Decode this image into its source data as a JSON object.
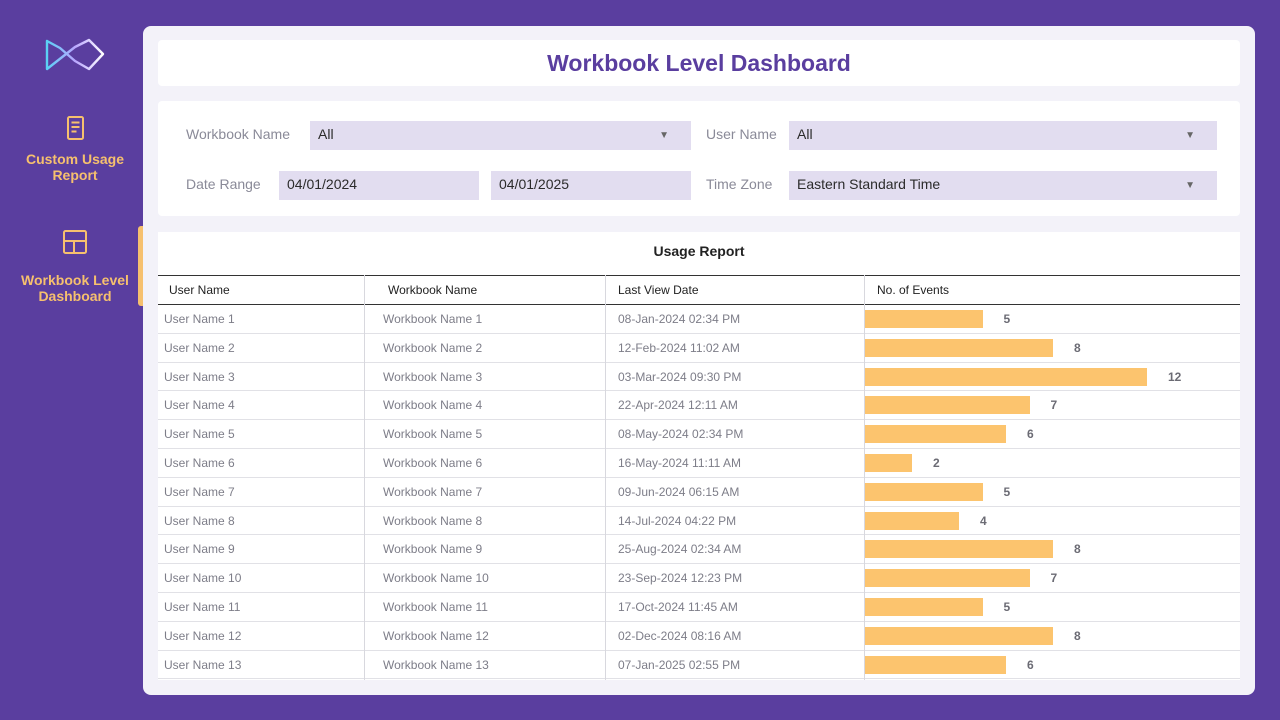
{
  "sidebar": {
    "items": [
      {
        "label": "Custom Usage Report",
        "icon": "document-icon"
      },
      {
        "label": "Workbook Level Dashboard",
        "icon": "layout-icon",
        "active": true
      }
    ]
  },
  "header": {
    "title": "Workbook Level Dashboard"
  },
  "filters": {
    "workbook_name": {
      "label": "Workbook Name",
      "value": "All"
    },
    "user_name": {
      "label": "User Name",
      "value": "All"
    },
    "date_range": {
      "label": "Date Range",
      "start": "04/01/2024",
      "end": "04/01/2025"
    },
    "time_zone": {
      "label": "Time Zone",
      "value": "Eastern Standard Time"
    }
  },
  "usage_report": {
    "title": "Usage Report",
    "columns": [
      "User Name",
      "Workbook Name",
      "Last View Date",
      "No. of Events"
    ],
    "rows": [
      {
        "user": "User Name 1",
        "workbook": "Workbook Name 1",
        "date": "08-Jan-2024 02:34 PM",
        "events": 5
      },
      {
        "user": "User Name 2",
        "workbook": "Workbook Name 2",
        "date": "12-Feb-2024 11:02 AM",
        "events": 8
      },
      {
        "user": "User Name 3",
        "workbook": "Workbook Name 3",
        "date": "03-Mar-2024 09:30 PM",
        "events": 12
      },
      {
        "user": "User Name 4",
        "workbook": "Workbook Name 4",
        "date": "22-Apr-2024 12:11 AM",
        "events": 7
      },
      {
        "user": "User Name 5",
        "workbook": "Workbook Name 5",
        "date": "08-May-2024 02:34 PM",
        "events": 6
      },
      {
        "user": "User Name 6",
        "workbook": "Workbook Name 6",
        "date": "16-May-2024 11:11 AM",
        "events": 2
      },
      {
        "user": "User Name 7",
        "workbook": "Workbook Name 7",
        "date": "09-Jun-2024 06:15 AM",
        "events": 5
      },
      {
        "user": "User Name 8",
        "workbook": "Workbook Name 8",
        "date": "14-Jul-2024 04:22 PM",
        "events": 4
      },
      {
        "user": "User Name 9",
        "workbook": "Workbook Name 9",
        "date": "25-Aug-2024 02:34 AM",
        "events": 8
      },
      {
        "user": "User Name 10",
        "workbook": "Workbook Name 10",
        "date": "23-Sep-2024 12:23 PM",
        "events": 7
      },
      {
        "user": "User Name 11",
        "workbook": "Workbook Name 11",
        "date": "17-Oct-2024 11:45 AM",
        "events": 5
      },
      {
        "user": "User Name 12",
        "workbook": "Workbook Name 12",
        "date": "02-Dec-2024 08:16 AM",
        "events": 8
      },
      {
        "user": "User Name 13",
        "workbook": "Workbook Name 13",
        "date": "07-Jan-2025 02:55 PM",
        "events": 6
      }
    ]
  },
  "colors": {
    "background": "#5a3e9f",
    "accent": "#f6c06e",
    "bar": "#fcc46e",
    "field": "#e2ddf0",
    "title": "#5a3e9f"
  }
}
